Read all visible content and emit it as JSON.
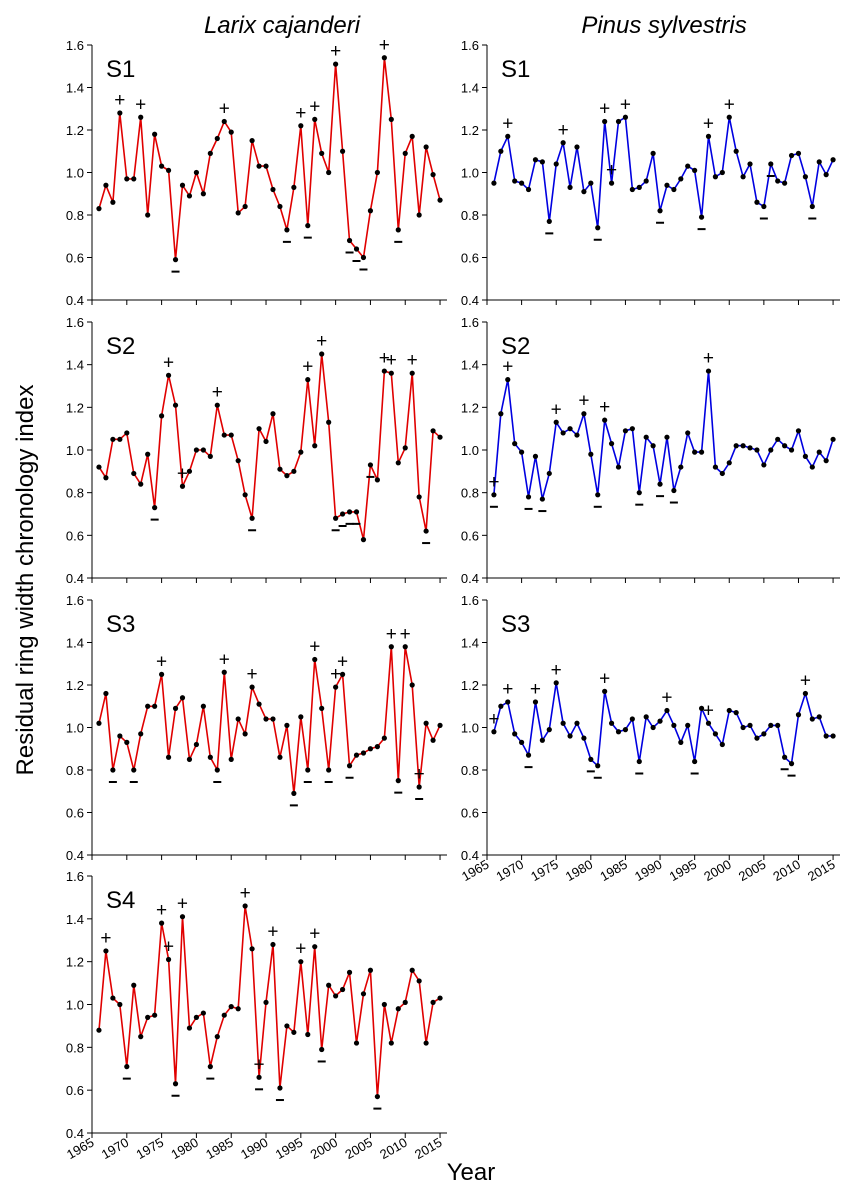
{
  "figure": {
    "col_titles": [
      "Larix cajanderi",
      "Pinus sylvestris"
    ],
    "ylabel": "Residual ring width chronology index",
    "xlabel": "Year",
    "colors": {
      "larix": "#e00000",
      "pinus": "#0000e0",
      "points": "#000000"
    }
  },
  "chart_data": [
    {
      "type": "line",
      "species": "Larix cajanderi",
      "panel": "S1",
      "color": "#e00000",
      "x_start": 1966,
      "xlim": [
        1965,
        2016
      ],
      "ylim": [
        0.4,
        1.6
      ],
      "yticks": [
        0.4,
        0.6,
        0.8,
        1.0,
        1.2,
        1.4,
        1.6
      ],
      "values": [
        0.83,
        0.94,
        0.86,
        1.28,
        0.97,
        0.97,
        1.26,
        0.8,
        1.18,
        1.03,
        1.01,
        0.59,
        0.94,
        0.89,
        1.0,
        0.9,
        1.09,
        1.16,
        1.24,
        1.19,
        0.81,
        0.84,
        1.15,
        1.03,
        1.03,
        0.92,
        0.84,
        0.73,
        0.93,
        1.22,
        0.75,
        1.25,
        1.09,
        1.0,
        1.51,
        1.1,
        0.68,
        0.64,
        0.6,
        0.82,
        1.0,
        1.54,
        1.25,
        0.73,
        1.09,
        1.17,
        0.8,
        1.12,
        0.99,
        0.87
      ],
      "plus": [
        1969,
        1972,
        1984,
        1995,
        1997,
        2000,
        2007
      ],
      "minus": [
        1977,
        1993,
        1996,
        2002,
        2003,
        2004,
        2009
      ]
    },
    {
      "type": "line",
      "species": "Larix cajanderi",
      "panel": "S2",
      "color": "#e00000",
      "x_start": 1966,
      "xlim": [
        1965,
        2016
      ],
      "ylim": [
        0.4,
        1.6
      ],
      "yticks": [
        0.4,
        0.6,
        0.8,
        1.0,
        1.2,
        1.4,
        1.6
      ],
      "values": [
        0.92,
        0.87,
        1.05,
        1.05,
        1.08,
        0.89,
        0.84,
        0.98,
        0.73,
        1.16,
        1.35,
        1.21,
        0.83,
        0.9,
        1.0,
        1.0,
        0.97,
        1.21,
        1.07,
        1.07,
        0.95,
        0.79,
        0.68,
        1.1,
        1.04,
        1.17,
        0.91,
        0.88,
        0.9,
        0.99,
        1.33,
        1.02,
        1.45,
        1.13,
        0.68,
        0.7,
        0.71,
        0.71,
        0.58,
        0.93,
        0.86,
        1.37,
        1.36,
        0.94,
        1.01,
        1.36,
        0.78,
        0.62,
        1.09,
        1.06
      ],
      "plus": [
        1976,
        1978,
        1983,
        1996,
        1998,
        2007,
        2008,
        2011
      ],
      "minus": [
        1974,
        1988,
        2000,
        2001,
        2002,
        2003,
        2005,
        2013
      ]
    },
    {
      "type": "line",
      "species": "Larix cajanderi",
      "panel": "S3",
      "color": "#e00000",
      "x_start": 1966,
      "xlim": [
        1965,
        2016
      ],
      "ylim": [
        0.4,
        1.6
      ],
      "yticks": [
        0.4,
        0.6,
        0.8,
        1.0,
        1.2,
        1.4,
        1.6
      ],
      "values": [
        1.02,
        1.16,
        0.8,
        0.96,
        0.93,
        0.8,
        0.97,
        1.1,
        1.1,
        1.25,
        0.86,
        1.09,
        1.14,
        0.85,
        0.92,
        1.1,
        0.86,
        0.8,
        1.26,
        0.85,
        1.04,
        0.97,
        1.19,
        1.11,
        1.04,
        1.04,
        0.86,
        1.01,
        0.69,
        1.05,
        0.8,
        1.32,
        1.09,
        0.8,
        1.19,
        1.25,
        0.82,
        0.87,
        0.88,
        0.9,
        0.91,
        0.95,
        1.38,
        0.75,
        1.38,
        1.2,
        0.72,
        1.02,
        0.94,
        1.01
      ],
      "plus": [
        1975,
        1984,
        1988,
        1997,
        2000,
        2001,
        2008,
        2010,
        2012
      ],
      "minus": [
        1968,
        1971,
        1983,
        1994,
        1996,
        1999,
        2002,
        2009,
        2012
      ]
    },
    {
      "type": "line",
      "species": "Larix cajanderi",
      "panel": "S4",
      "color": "#e00000",
      "x_start": 1966,
      "xlim": [
        1965,
        2016
      ],
      "ylim": [
        0.4,
        1.6
      ],
      "yticks": [
        0.4,
        0.6,
        0.8,
        1.0,
        1.2,
        1.4,
        1.6
      ],
      "values": [
        0.88,
        1.25,
        1.03,
        1.0,
        0.71,
        1.09,
        0.85,
        0.94,
        0.95,
        1.38,
        1.21,
        0.63,
        1.41,
        0.89,
        0.94,
        0.96,
        0.71,
        0.85,
        0.95,
        0.99,
        0.98,
        1.46,
        1.26,
        0.66,
        1.01,
        1.28,
        0.61,
        0.9,
        0.87,
        1.2,
        0.86,
        1.27,
        0.79,
        1.09,
        1.04,
        1.07,
        1.15,
        0.82,
        1.05,
        1.16,
        0.57,
        1.0,
        0.82,
        0.98,
        1.01,
        1.16,
        1.11,
        0.82,
        1.01,
        1.03
      ],
      "plus": [
        1967,
        1975,
        1976,
        1978,
        1987,
        1989,
        1991,
        1995,
        1997
      ],
      "minus": [
        1970,
        1977,
        1982,
        1989,
        1992,
        1998,
        2006
      ],
      "xticks": [
        1965,
        1970,
        1975,
        1980,
        1985,
        1990,
        1995,
        2000,
        2005,
        2010,
        2015
      ]
    },
    {
      "type": "line",
      "species": "Pinus sylvestris",
      "panel": "S1",
      "color": "#0000e0",
      "x_start": 1966,
      "xlim": [
        1965,
        2016
      ],
      "ylim": [
        0.4,
        1.6
      ],
      "yticks": [
        0.4,
        0.6,
        0.8,
        1.0,
        1.2,
        1.4,
        1.6
      ],
      "values": [
        0.95,
        1.1,
        1.17,
        0.96,
        0.95,
        0.92,
        1.06,
        1.05,
        0.77,
        1.04,
        1.14,
        0.93,
        1.12,
        0.91,
        0.95,
        0.74,
        1.24,
        0.95,
        1.24,
        1.26,
        0.92,
        0.93,
        0.96,
        1.09,
        0.82,
        0.94,
        0.92,
        0.97,
        1.03,
        1.01,
        0.79,
        1.17,
        0.98,
        1.0,
        1.26,
        1.1,
        0.98,
        1.04,
        0.86,
        0.84,
        1.04,
        0.96,
        0.95,
        1.08,
        1.09,
        0.98,
        0.84,
        1.05,
        0.99,
        1.06
      ],
      "plus": [
        1968,
        1976,
        1982,
        1983,
        1985,
        1997,
        2000
      ],
      "minus": [
        1974,
        1981,
        1990,
        1996,
        2005,
        2006,
        2012
      ]
    },
    {
      "type": "line",
      "species": "Pinus sylvestris",
      "panel": "S2",
      "color": "#0000e0",
      "x_start": 1966,
      "xlim": [
        1965,
        2016
      ],
      "ylim": [
        0.4,
        1.6
      ],
      "yticks": [
        0.4,
        0.6,
        0.8,
        1.0,
        1.2,
        1.4,
        1.6
      ],
      "values": [
        0.79,
        1.17,
        1.33,
        1.03,
        0.99,
        0.78,
        0.97,
        0.77,
        0.89,
        1.13,
        1.08,
        1.1,
        1.07,
        1.17,
        0.98,
        0.79,
        1.14,
        1.03,
        0.92,
        1.09,
        1.1,
        0.8,
        1.06,
        1.02,
        0.84,
        1.06,
        0.81,
        0.92,
        1.08,
        0.99,
        0.99,
        1.37,
        0.92,
        0.89,
        0.94,
        1.02,
        1.02,
        1.01,
        1.0,
        0.93,
        1.0,
        1.05,
        1.02,
        1.0,
        1.09,
        0.97,
        0.92,
        0.99,
        0.95,
        1.05
      ],
      "plus": [
        1966,
        1968,
        1975,
        1979,
        1982,
        1997
      ],
      "minus": [
        1966,
        1971,
        1973,
        1981,
        1987,
        1990,
        1992
      ]
    },
    {
      "type": "line",
      "species": "Pinus sylvestris",
      "panel": "S3",
      "color": "#0000e0",
      "x_start": 1966,
      "xlim": [
        1965,
        2016
      ],
      "ylim": [
        0.4,
        1.6
      ],
      "yticks": [
        0.4,
        0.6,
        0.8,
        1.0,
        1.2,
        1.4,
        1.6
      ],
      "values": [
        0.98,
        1.1,
        1.12,
        0.97,
        0.93,
        0.87,
        1.12,
        0.94,
        0.99,
        1.21,
        1.02,
        0.96,
        1.02,
        0.95,
        0.85,
        0.82,
        1.17,
        1.02,
        0.98,
        0.99,
        1.04,
        0.84,
        1.05,
        1.0,
        1.03,
        1.08,
        1.01,
        0.93,
        1.01,
        0.84,
        1.09,
        1.02,
        0.97,
        0.92,
        1.08,
        1.07,
        1.0,
        1.01,
        0.95,
        0.97,
        1.01,
        1.01,
        0.86,
        0.83,
        1.06,
        1.16,
        1.04,
        1.05,
        0.96,
        0.96
      ],
      "plus": [
        1966,
        1968,
        1972,
        1975,
        1982,
        1991,
        1997,
        2011
      ],
      "minus": [
        1971,
        1980,
        1981,
        1987,
        1995,
        2008,
        2009
      ],
      "xticks": [
        1965,
        1970,
        1975,
        1980,
        1985,
        1990,
        1995,
        2000,
        2005,
        2010,
        2015
      ]
    }
  ]
}
